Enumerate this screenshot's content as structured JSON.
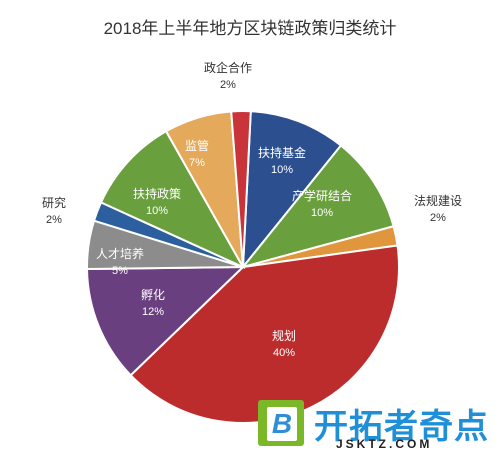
{
  "chart_data": {
    "type": "pie",
    "title": "2018年上半年地方区块链政策归类统计",
    "slices": [
      {
        "label": "扶持基金",
        "value": 10,
        "display": "10%",
        "color": "#2b4f8f"
      },
      {
        "label": "产学研结合",
        "value": 10,
        "display": "10%",
        "color": "#6a9f3e"
      },
      {
        "label": "法规建设",
        "value": 2,
        "display": "2%",
        "color": "#e0963c"
      },
      {
        "label": "规划",
        "value": 40,
        "display": "40%",
        "color": "#bd2c2c"
      },
      {
        "label": "孵化",
        "value": 12,
        "display": "12%",
        "color": "#6a3f7f"
      },
      {
        "label": "人才培养",
        "value": 5,
        "display": "5%",
        "color": "#8c8c8c"
      },
      {
        "label": "研究",
        "value": 2,
        "display": "2%",
        "color": "#2c5f9e"
      },
      {
        "label": "扶持政策",
        "value": 10,
        "display": "10%",
        "color": "#6a9f3e"
      },
      {
        "label": "监管",
        "value": 7,
        "display": "7%",
        "color": "#e4a95b"
      },
      {
        "label": "政企合作",
        "value": 2,
        "display": "2%",
        "color": "#c9343a"
      }
    ]
  },
  "watermark": {
    "logo_letter": "B",
    "brand": "开拓者奇点",
    "url": "JSKTZ.COM"
  }
}
